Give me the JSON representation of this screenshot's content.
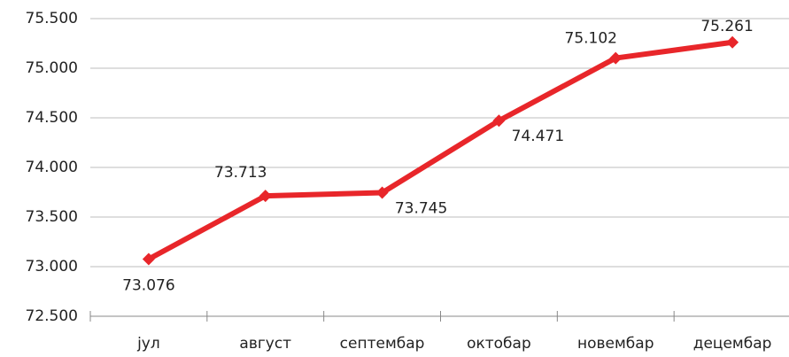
{
  "chart_data": {
    "type": "line",
    "categories": [
      "јул",
      "август",
      "септембар",
      "октобар",
      "новембар",
      "децембар"
    ],
    "series": [
      {
        "color": "#e8262a",
        "values": [
          73076,
          73713,
          73745,
          74471,
          75102,
          75261
        ],
        "value_labels": [
          "73.076",
          "73.713",
          "73.745",
          "74.471",
          "75.102",
          "75.261"
        ]
      }
    ],
    "ylim": [
      72500,
      75500
    ],
    "yticks": [
      {
        "value": 72500,
        "label": "72.500"
      },
      {
        "value": 73000,
        "label": "73.000"
      },
      {
        "value": 73500,
        "label": "73.500"
      },
      {
        "value": 74000,
        "label": "74.000"
      },
      {
        "value": 74500,
        "label": "74.500"
      },
      {
        "value": 75000,
        "label": "75.000"
      },
      {
        "value": 75500,
        "label": "75.500"
      }
    ],
    "grid": true
  }
}
